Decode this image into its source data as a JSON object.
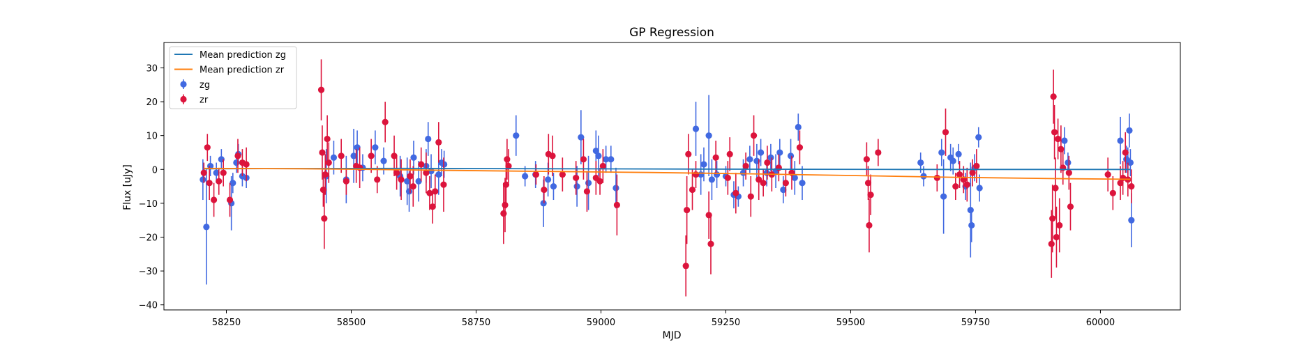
{
  "chart_data": {
    "type": "scatter",
    "title": "GP Regression",
    "xlabel": "MJD",
    "ylabel": "Flux [uJy]",
    "xlim": [
      58125,
      60160
    ],
    "ylim": [
      -41.5,
      37.5
    ],
    "xticks": [
      58250,
      58500,
      58750,
      59000,
      59250,
      59500,
      59750,
      60000
    ],
    "xtick_labels": [
      "58250",
      "58500",
      "58750",
      "59000",
      "59250",
      "59500",
      "59750",
      "60000"
    ],
    "yticks": [
      -40,
      -30,
      -20,
      -10,
      0,
      10,
      20,
      30
    ],
    "ytick_labels": [
      "−40",
      "−30",
      "−20",
      "−10",
      "0",
      "10",
      "20",
      "30"
    ],
    "grid": false,
    "legend_position": "top-left",
    "legend": [
      {
        "label": "Mean prediction zg",
        "kind": "line",
        "color": "#1f77b4"
      },
      {
        "label": "Mean prediction zr",
        "kind": "line",
        "color": "#ff7f0e"
      },
      {
        "label": "zg",
        "kind": "errorbar",
        "color": "#4169e1"
      },
      {
        "label": "zr",
        "kind": "errorbar",
        "color": "#dc143c"
      }
    ],
    "lines": [
      {
        "name": "Mean prediction zg",
        "color": "#1f77b4",
        "x": [
          58205,
          58600,
          58900,
          59200,
          59600,
          60060
        ],
        "y": [
          0.2,
          0.3,
          0.2,
          0.1,
          0.0,
          0.0
        ]
      },
      {
        "name": "Mean prediction zr",
        "color": "#ff7f0e",
        "x": [
          58205,
          58400,
          58550,
          58700,
          58900,
          59100,
          59300,
          59500,
          59700,
          59900,
          60060
        ],
        "y": [
          0.3,
          0.2,
          0.0,
          -0.3,
          -0.6,
          -0.9,
          -1.3,
          -1.8,
          -2.3,
          -2.7,
          -2.9
        ]
      },
      {
        "name": "zg",
        "color": "#4169e1",
        "errorbar": true,
        "points": [
          [
            58203,
            -3,
            6
          ],
          [
            58210,
            -17,
            17
          ],
          [
            58218,
            1,
            3
          ],
          [
            58230,
            -1,
            3
          ],
          [
            58240,
            3,
            3
          ],
          [
            58260,
            -10,
            8
          ],
          [
            58263,
            -4,
            3
          ],
          [
            58270,
            2,
            3
          ],
          [
            58274,
            4.5,
            3
          ],
          [
            58282,
            -2,
            3
          ],
          [
            58290,
            -2.5,
            3
          ],
          [
            58450,
            -2,
            8
          ],
          [
            58465,
            3.5,
            5
          ],
          [
            58490,
            -3,
            7
          ],
          [
            58505,
            4,
            8
          ],
          [
            58512,
            6.5,
            5
          ],
          [
            58523,
            0.5,
            4
          ],
          [
            58548,
            6.5,
            5
          ],
          [
            58565,
            2.5,
            4
          ],
          [
            58598,
            -2,
            6
          ],
          [
            58612,
            -3.5,
            7
          ],
          [
            58616,
            -6.5,
            6
          ],
          [
            58625,
            3.5,
            5
          ],
          [
            58635,
            -3.5,
            6
          ],
          [
            58650,
            1,
            5
          ],
          [
            58654,
            9,
            5
          ],
          [
            58660,
            -0.5,
            5
          ],
          [
            58675,
            -1.5,
            6
          ],
          [
            58681,
            2,
            4
          ],
          [
            58686,
            1.5,
            4
          ],
          [
            58830,
            10,
            6
          ],
          [
            58848,
            -2,
            3
          ],
          [
            58869,
            -1.5,
            4
          ],
          [
            58885,
            -10,
            7
          ],
          [
            58894,
            -3,
            5
          ],
          [
            58905,
            -5,
            4
          ],
          [
            58952,
            -5,
            6
          ],
          [
            58960,
            9.5,
            8
          ],
          [
            58975,
            -4,
            8
          ],
          [
            58990,
            5.5,
            6
          ],
          [
            58995,
            4,
            6
          ],
          [
            59010,
            3,
            4
          ],
          [
            59020,
            3,
            4
          ],
          [
            59030,
            -5.5,
            6
          ],
          [
            59190,
            12,
            8
          ],
          [
            59200,
            -1.5,
            6
          ],
          [
            59206,
            1.5,
            5
          ],
          [
            59216,
            10,
            12
          ],
          [
            59222,
            -3,
            6
          ],
          [
            59232,
            -1.5,
            4
          ],
          [
            59250,
            -2,
            3
          ],
          [
            59266,
            -7.5,
            4
          ],
          [
            59275,
            -8,
            3
          ],
          [
            59285,
            -1,
            4
          ],
          [
            59298,
            3,
            4
          ],
          [
            59312,
            2.5,
            5
          ],
          [
            59320,
            5,
            4
          ],
          [
            59332,
            -1,
            4
          ],
          [
            59340,
            3.5,
            4
          ],
          [
            59350,
            -0.5,
            5
          ],
          [
            59358,
            5,
            4
          ],
          [
            59365,
            -6,
            4
          ],
          [
            59380,
            4,
            5
          ],
          [
            59388,
            -2.5,
            5
          ],
          [
            59395,
            12.5,
            4
          ],
          [
            59403,
            -4,
            5
          ],
          [
            59640,
            2,
            3
          ],
          [
            59646,
            -2,
            3
          ],
          [
            59682,
            5,
            4
          ],
          [
            59686,
            -8,
            11
          ],
          [
            59700,
            3.5,
            4
          ],
          [
            59705,
            2.5,
            4
          ],
          [
            59716,
            4.5,
            3
          ],
          [
            59730,
            -5,
            4
          ],
          [
            59740,
            -12,
            14
          ],
          [
            59742,
            -16.5,
            5
          ],
          [
            59748,
            0.5,
            4
          ],
          [
            59756,
            9.5,
            3
          ],
          [
            59758,
            -5.5,
            4
          ],
          [
            59928,
            8.5,
            4
          ],
          [
            59935,
            2,
            3
          ],
          [
            60040,
            8.5,
            7
          ],
          [
            60052,
            3,
            4
          ],
          [
            60055,
            2.5,
            4
          ],
          [
            60058,
            11.5,
            5
          ],
          [
            60060,
            2,
            4
          ],
          [
            60062,
            -15,
            8
          ]
        ]
      },
      {
        "name": "zr",
        "color": "#dc143c",
        "errorbar": true,
        "points": [
          [
            58205,
            -1,
            3
          ],
          [
            58212,
            6.5,
            4
          ],
          [
            58216,
            -4,
            5
          ],
          [
            58225,
            -9,
            5
          ],
          [
            58235,
            -3.5,
            4
          ],
          [
            58244,
            -1,
            4
          ],
          [
            58257,
            -9,
            5
          ],
          [
            58273,
            4,
            5
          ],
          [
            58282,
            2,
            4
          ],
          [
            58290,
            1.5,
            5
          ],
          [
            58440,
            23.5,
            9
          ],
          [
            58442,
            5,
            8
          ],
          [
            58444,
            -6,
            5
          ],
          [
            58446,
            -14.5,
            9
          ],
          [
            58448,
            -1.5,
            6
          ],
          [
            58452,
            9,
            7
          ],
          [
            58455,
            2,
            6
          ],
          [
            58480,
            4,
            5
          ],
          [
            58490,
            -3.5,
            4
          ],
          [
            58510,
            1,
            5
          ],
          [
            58517,
            0.5,
            6
          ],
          [
            58540,
            4,
            5
          ],
          [
            58552,
            -3,
            4
          ],
          [
            58568,
            14,
            6
          ],
          [
            58586,
            4,
            6
          ],
          [
            58591,
            -1,
            5
          ],
          [
            58600,
            -3,
            6
          ],
          [
            58618,
            -2,
            5
          ],
          [
            58624,
            -5,
            6
          ],
          [
            58640,
            1.5,
            5
          ],
          [
            58650,
            -1,
            6
          ],
          [
            58657,
            -7,
            5
          ],
          [
            58663,
            -11,
            5
          ],
          [
            58668,
            -6.5,
            5
          ],
          [
            58675,
            8,
            6
          ],
          [
            58685,
            -4.5,
            8
          ],
          [
            58805,
            -13,
            9
          ],
          [
            58808,
            -10.5,
            8
          ],
          [
            58810,
            -4.5,
            7
          ],
          [
            58812,
            3,
            6
          ],
          [
            58815,
            1,
            5
          ],
          [
            58870,
            -1.5,
            3
          ],
          [
            58886,
            -6,
            4
          ],
          [
            58895,
            4.5,
            6
          ],
          [
            58903,
            4,
            6
          ],
          [
            58923,
            -1.5,
            5
          ],
          [
            58950,
            -2.5,
            5
          ],
          [
            58965,
            3,
            6
          ],
          [
            58972,
            -6.5,
            6
          ],
          [
            58990,
            -2.5,
            5
          ],
          [
            58998,
            -3.5,
            4
          ],
          [
            59004,
            1,
            5
          ],
          [
            59032,
            -10.5,
            9
          ],
          [
            59170,
            -28.5,
            9
          ],
          [
            59172,
            -12,
            10
          ],
          [
            59175,
            4.5,
            6
          ],
          [
            59183,
            -6,
            6
          ],
          [
            59190,
            -1.5,
            4
          ],
          [
            59216,
            -13.5,
            7
          ],
          [
            59220,
            -22,
            9
          ],
          [
            59230,
            3.5,
            5
          ],
          [
            59254,
            -2.5,
            5
          ],
          [
            59258,
            4.5,
            5
          ],
          [
            59270,
            -7,
            6
          ],
          [
            59290,
            1,
            4
          ],
          [
            59300,
            -8,
            6
          ],
          [
            59306,
            10,
            6
          ],
          [
            59316,
            -3,
            6
          ],
          [
            59325,
            -4,
            4
          ],
          [
            59333,
            2,
            5
          ],
          [
            59342,
            -1.5,
            5
          ],
          [
            59356,
            0.5,
            4
          ],
          [
            59370,
            -4,
            4
          ],
          [
            59382,
            -1,
            5
          ],
          [
            59398,
            6.5,
            5
          ],
          [
            59532,
            3,
            5
          ],
          [
            59535,
            -4,
            5
          ],
          [
            59537,
            -16.5,
            8
          ],
          [
            59540,
            -7.5,
            6
          ],
          [
            59555,
            5,
            4
          ],
          [
            59673,
            -2.5,
            4
          ],
          [
            59690,
            11,
            7
          ],
          [
            59710,
            -5,
            4
          ],
          [
            59718,
            -1.5,
            4
          ],
          [
            59726,
            -3,
            4
          ],
          [
            59733,
            -4.5,
            5
          ],
          [
            59744,
            -1,
            4
          ],
          [
            59752,
            1,
            5
          ],
          [
            59902,
            -22,
            10
          ],
          [
            59904,
            -14.5,
            10
          ],
          [
            59906,
            21.5,
            8
          ],
          [
            59908,
            11,
            8
          ],
          [
            59910,
            -5.5,
            9
          ],
          [
            59912,
            -20,
            9
          ],
          [
            59915,
            9,
            6
          ],
          [
            59918,
            -16.5,
            8
          ],
          [
            59921,
            6,
            7
          ],
          [
            59925,
            0.5,
            5
          ],
          [
            59940,
            -11,
            7
          ],
          [
            59937,
            -1,
            5
          ],
          [
            60015,
            -1.5,
            5
          ],
          [
            60025,
            -7,
            5
          ],
          [
            60040,
            -4,
            5
          ],
          [
            60045,
            -2.5,
            5
          ],
          [
            60050,
            5,
            6
          ],
          [
            60055,
            -3,
            5
          ],
          [
            60062,
            -5,
            5
          ]
        ]
      }
    ]
  }
}
